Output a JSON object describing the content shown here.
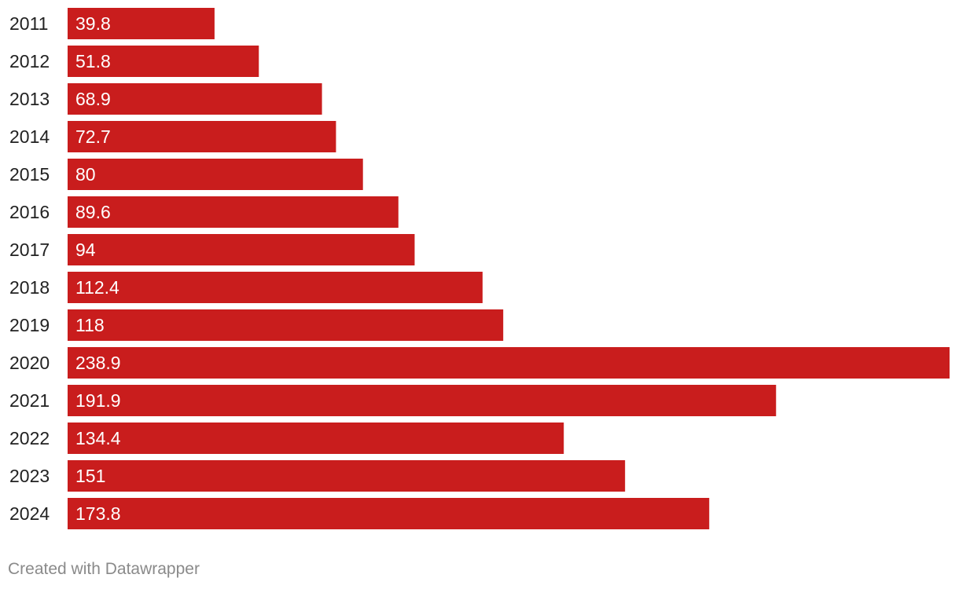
{
  "chart_data": {
    "type": "bar",
    "orientation": "horizontal",
    "categories": [
      "2011",
      "2012",
      "2013",
      "2014",
      "2015",
      "2016",
      "2017",
      "2018",
      "2019",
      "2020",
      "2021",
      "2022",
      "2023",
      "2024"
    ],
    "values": [
      39.8,
      51.8,
      68.9,
      72.7,
      80,
      89.6,
      94,
      112.4,
      118,
      238.9,
      191.9,
      134.4,
      151,
      173.8
    ],
    "value_labels": [
      "39.8",
      "51.8",
      "68.9",
      "72.7",
      "80",
      "89.6",
      "94",
      "112.4",
      "118",
      "238.9",
      "191.9",
      "134.4",
      "151",
      "173.8"
    ],
    "title": "",
    "xlabel": "",
    "ylabel": "",
    "xlim": [
      0,
      238.9
    ],
    "grid": false,
    "legend": "none",
    "bar_color": "#c91d1d"
  },
  "footer": {
    "credit": "Created with Datawrapper"
  }
}
